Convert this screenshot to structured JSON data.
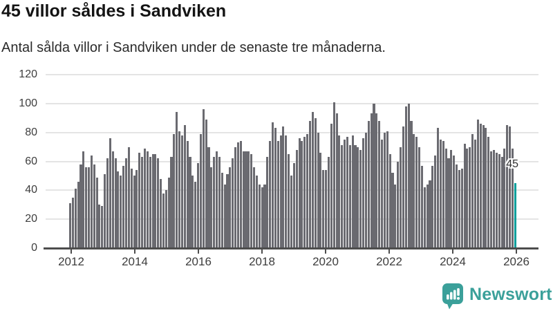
{
  "header": {
    "title": "45 villor såldes i Sandviken",
    "subtitle": "Antal sålda villor i Sandviken under de senaste tre månaderna."
  },
  "chart_data": {
    "type": "bar",
    "title": "45 villor såldes i Sandviken",
    "subtitle": "Antal sålda villor i Sandviken under de senaste tre månaderna.",
    "frequency": "monthly",
    "start_year": 2012,
    "values": [
      31,
      35,
      41,
      46,
      58,
      67,
      56,
      56,
      64,
      58,
      49,
      30,
      29,
      51,
      62,
      76,
      67,
      62,
      53,
      50,
      57,
      62,
      70,
      55,
      50,
      54,
      66,
      63,
      69,
      67,
      63,
      65,
      65,
      62,
      48,
      38,
      40,
      49,
      63,
      79,
      94,
      81,
      78,
      85,
      74,
      63,
      50,
      46,
      59,
      79,
      96,
      89,
      70,
      56,
      63,
      67,
      63,
      52,
      44,
      51,
      56,
      62,
      70,
      73,
      74,
      67,
      67,
      67,
      65,
      56,
      50,
      44,
      42,
      44,
      63,
      74,
      87,
      83,
      74,
      78,
      84,
      78,
      65,
      50,
      59,
      68,
      76,
      74,
      77,
      79,
      88,
      94,
      90,
      80,
      66,
      54,
      54,
      63,
      86,
      101,
      93,
      78,
      71,
      75,
      77,
      71,
      78,
      71,
      70,
      68,
      76,
      80,
      88,
      93,
      100,
      93,
      88,
      75,
      80,
      81,
      65,
      52,
      44,
      60,
      70,
      84,
      98,
      100,
      88,
      79,
      77,
      70,
      57,
      42,
      44,
      47,
      57,
      64,
      83,
      75,
      74,
      69,
      62,
      68,
      64,
      58,
      54,
      55,
      72,
      69,
      70,
      79,
      75,
      89,
      86,
      85,
      83,
      77,
      67,
      68,
      66,
      65,
      63,
      69,
      85,
      84,
      69,
      45
    ],
    "highlight_last_value": 45,
    "last_value_label": "45",
    "ylim": [
      0,
      120
    ],
    "yticks": [
      0,
      20,
      40,
      60,
      80,
      100,
      120
    ],
    "xtick_labels": [
      "2012",
      "2014",
      "2016",
      "2018",
      "2020",
      "2022",
      "2024",
      "2026"
    ],
    "grid": "horizontal",
    "bar_color": "#6a6a70",
    "highlight_color": "#009e9b",
    "grid_color": "#e4e4e4",
    "axis_color": "#4d4d4d"
  },
  "annotation": {
    "last_value_label": "45"
  },
  "footer": {
    "brand": "Newsworthy",
    "brand_color": "#3ba09a",
    "icon": "bar-chart-speech-bubble-icon"
  }
}
